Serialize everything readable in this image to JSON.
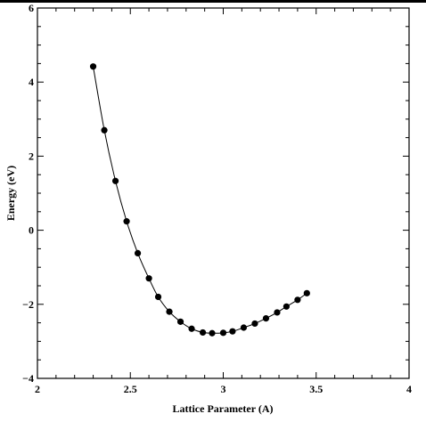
{
  "chart_data": {
    "type": "line",
    "title": "",
    "xlabel": "Lattice Parameter (A)",
    "ylabel": "Energy (eV)",
    "xlim": [
      2,
      4
    ],
    "ylim": [
      -4,
      6
    ],
    "xticks": [
      2,
      2.5,
      3,
      3.5,
      4
    ],
    "yticks": [
      -4,
      -2,
      0,
      2,
      4,
      6
    ],
    "xtick_labels": [
      "2",
      "2.5",
      "3",
      "3.5",
      "4"
    ],
    "ytick_labels": [
      "−4",
      "−2",
      "0",
      "2",
      "4",
      "6"
    ],
    "grid": false,
    "legend": "none",
    "series": [
      {
        "color": "#000000",
        "marker": "circle",
        "points": [
          [
            2.3,
            4.42
          ],
          [
            2.36,
            2.7
          ],
          [
            2.42,
            1.33
          ],
          [
            2.48,
            0.24
          ],
          [
            2.54,
            -0.62
          ],
          [
            2.6,
            -1.3
          ],
          [
            2.65,
            -1.8
          ],
          [
            2.71,
            -2.2
          ],
          [
            2.77,
            -2.47
          ],
          [
            2.83,
            -2.66
          ],
          [
            2.89,
            -2.76
          ],
          [
            2.94,
            -2.78
          ],
          [
            3.0,
            -2.77
          ],
          [
            3.05,
            -2.73
          ],
          [
            3.11,
            -2.63
          ],
          [
            3.17,
            -2.52
          ],
          [
            3.23,
            -2.38
          ],
          [
            3.29,
            -2.22
          ],
          [
            3.34,
            -2.06
          ],
          [
            3.4,
            -1.88
          ],
          [
            3.45,
            -1.7
          ]
        ]
      }
    ]
  }
}
